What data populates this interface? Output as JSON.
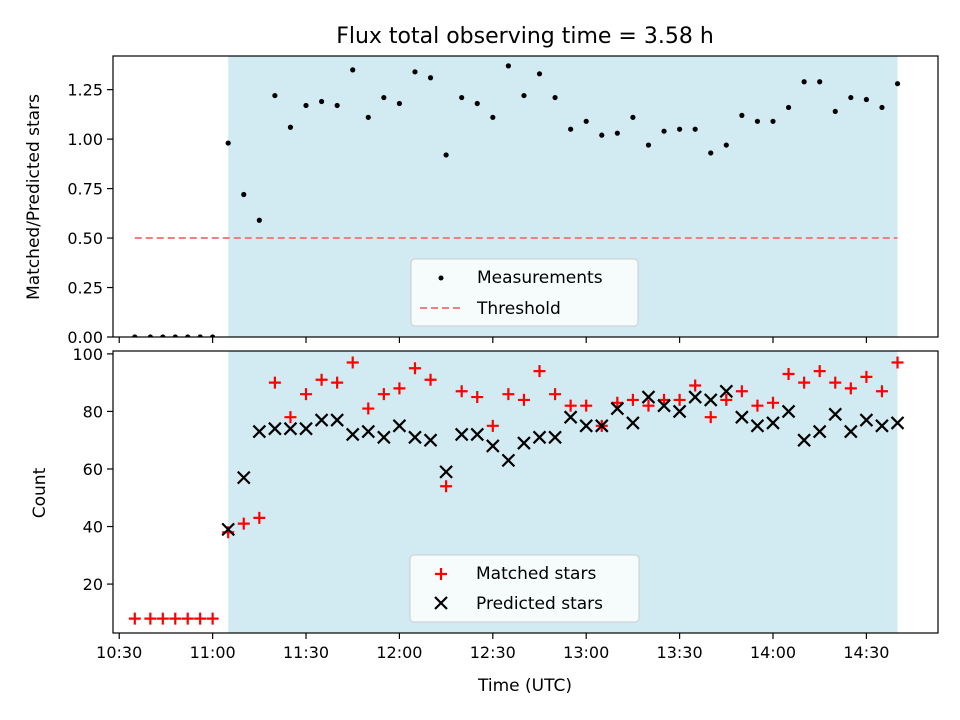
{
  "chart_data": {
    "type": "scatter",
    "title": "Flux total observing time = 3.58 h",
    "xlabel": "Time (UTC)",
    "x_ticks": [
      "10:30",
      "11:00",
      "11:30",
      "12:00",
      "12:30",
      "13:00",
      "13:30",
      "14:00",
      "14:30"
    ],
    "x_range": [
      "10:28",
      "14:53"
    ],
    "shaded_interval": [
      "11:05",
      "14:40"
    ],
    "shade_color": "#add8e6",
    "panels": [
      {
        "ylabel": "Matched/Predicted stars",
        "ylim": [
          0,
          1.42
        ],
        "y_ticks": [
          "0.00",
          "0.25",
          "0.50",
          "0.75",
          "1.00",
          "1.25"
        ],
        "legend_position": "lower-center",
        "series": [
          {
            "name": "Measurements",
            "marker": "dot",
            "color": "#000000",
            "x": [
              "10:35",
              "10:40",
              "10:44",
              "10:48",
              "10:52",
              "10:56",
              "11:00",
              "11:05",
              "11:10",
              "11:15",
              "11:20",
              "11:25",
              "11:30",
              "11:35",
              "11:40",
              "11:45",
              "11:50",
              "11:55",
              "12:00",
              "12:05",
              "12:10",
              "12:15",
              "12:20",
              "12:25",
              "12:30",
              "12:35",
              "12:40",
              "12:45",
              "12:50",
              "12:55",
              "13:00",
              "13:05",
              "13:10",
              "13:15",
              "13:20",
              "13:25",
              "13:30",
              "13:35",
              "13:40",
              "13:45",
              "13:50",
              "13:55",
              "14:00",
              "14:05",
              "14:10",
              "14:15",
              "14:20",
              "14:25",
              "14:30",
              "14:35",
              "14:40"
            ],
            "y": [
              0,
              0,
              0,
              0,
              0,
              0,
              0,
              0.98,
              0.72,
              0.59,
              1.22,
              1.06,
              1.17,
              1.19,
              1.17,
              1.35,
              1.11,
              1.21,
              1.18,
              1.34,
              1.31,
              0.92,
              1.21,
              1.18,
              1.11,
              1.37,
              1.22,
              1.33,
              1.21,
              1.05,
              1.09,
              1.02,
              1.03,
              1.11,
              0.97,
              1.04,
              1.05,
              1.05,
              0.93,
              0.97,
              1.12,
              1.09,
              1.09,
              1.16,
              1.29,
              1.29,
              1.14,
              1.21,
              1.2,
              1.16,
              1.28
            ]
          },
          {
            "name": "Threshold",
            "style": "dashed",
            "color": "#f08080",
            "x": [
              "10:35",
              "14:40"
            ],
            "y": [
              0.5,
              0.5
            ]
          }
        ]
      },
      {
        "ylabel": "Count",
        "ylim": [
          3,
          101
        ],
        "y_ticks": [
          "20",
          "40",
          "60",
          "80",
          "100"
        ],
        "legend_position": "lower-center",
        "series": [
          {
            "name": "Matched stars",
            "marker": "plus",
            "color": "#ff0000",
            "x": [
              "10:35",
              "10:40",
              "10:44",
              "10:48",
              "10:52",
              "10:56",
              "11:00",
              "11:05",
              "11:10",
              "11:15",
              "11:20",
              "11:25",
              "11:30",
              "11:35",
              "11:40",
              "11:45",
              "11:50",
              "11:55",
              "12:00",
              "12:05",
              "12:10",
              "12:15",
              "12:20",
              "12:25",
              "12:30",
              "12:35",
              "12:40",
              "12:45",
              "12:50",
              "12:55",
              "13:00",
              "13:05",
              "13:10",
              "13:15",
              "13:20",
              "13:25",
              "13:30",
              "13:35",
              "13:40",
              "13:45",
              "13:50",
              "13:55",
              "14:00",
              "14:05",
              "14:10",
              "14:15",
              "14:20",
              "14:25",
              "14:30",
              "14:35",
              "14:40"
            ],
            "y": [
              8,
              8,
              8,
              8,
              8,
              8,
              8,
              38,
              41,
              43,
              90,
              78,
              86,
              91,
              90,
              97,
              81,
              86,
              88,
              95,
              91,
              54,
              87,
              85,
              75,
              86,
              84,
              94,
              86,
              82,
              82,
              75,
              83,
              84,
              82,
              84,
              84,
              89,
              78,
              84,
              87,
              82,
              83,
              93,
              90,
              94,
              90,
              88,
              92,
              87,
              97
            ]
          },
          {
            "name": "Predicted stars",
            "marker": "x",
            "color": "#000000",
            "x": [
              "11:05",
              "11:10",
              "11:15",
              "11:20",
              "11:25",
              "11:30",
              "11:35",
              "11:40",
              "11:45",
              "11:50",
              "11:55",
              "12:00",
              "12:05",
              "12:10",
              "12:15",
              "12:20",
              "12:25",
              "12:30",
              "12:35",
              "12:40",
              "12:45",
              "12:50",
              "12:55",
              "13:00",
              "13:05",
              "13:10",
              "13:15",
              "13:20",
              "13:25",
              "13:30",
              "13:35",
              "13:40",
              "13:45",
              "13:50",
              "13:55",
              "14:00",
              "14:05",
              "14:10",
              "14:15",
              "14:20",
              "14:25",
              "14:30",
              "14:35",
              "14:40"
            ],
            "y": [
              39,
              57,
              73,
              74,
              74,
              74,
              77,
              77,
              72,
              73,
              71,
              75,
              71,
              70,
              59,
              72,
              72,
              68,
              63,
              69,
              71,
              71,
              78,
              75,
              75,
              81,
              76,
              85,
              82,
              80,
              85,
              84,
              87,
              78,
              75,
              76,
              80,
              70,
              73,
              79,
              73,
              77,
              75,
              76
            ]
          }
        ]
      }
    ]
  }
}
